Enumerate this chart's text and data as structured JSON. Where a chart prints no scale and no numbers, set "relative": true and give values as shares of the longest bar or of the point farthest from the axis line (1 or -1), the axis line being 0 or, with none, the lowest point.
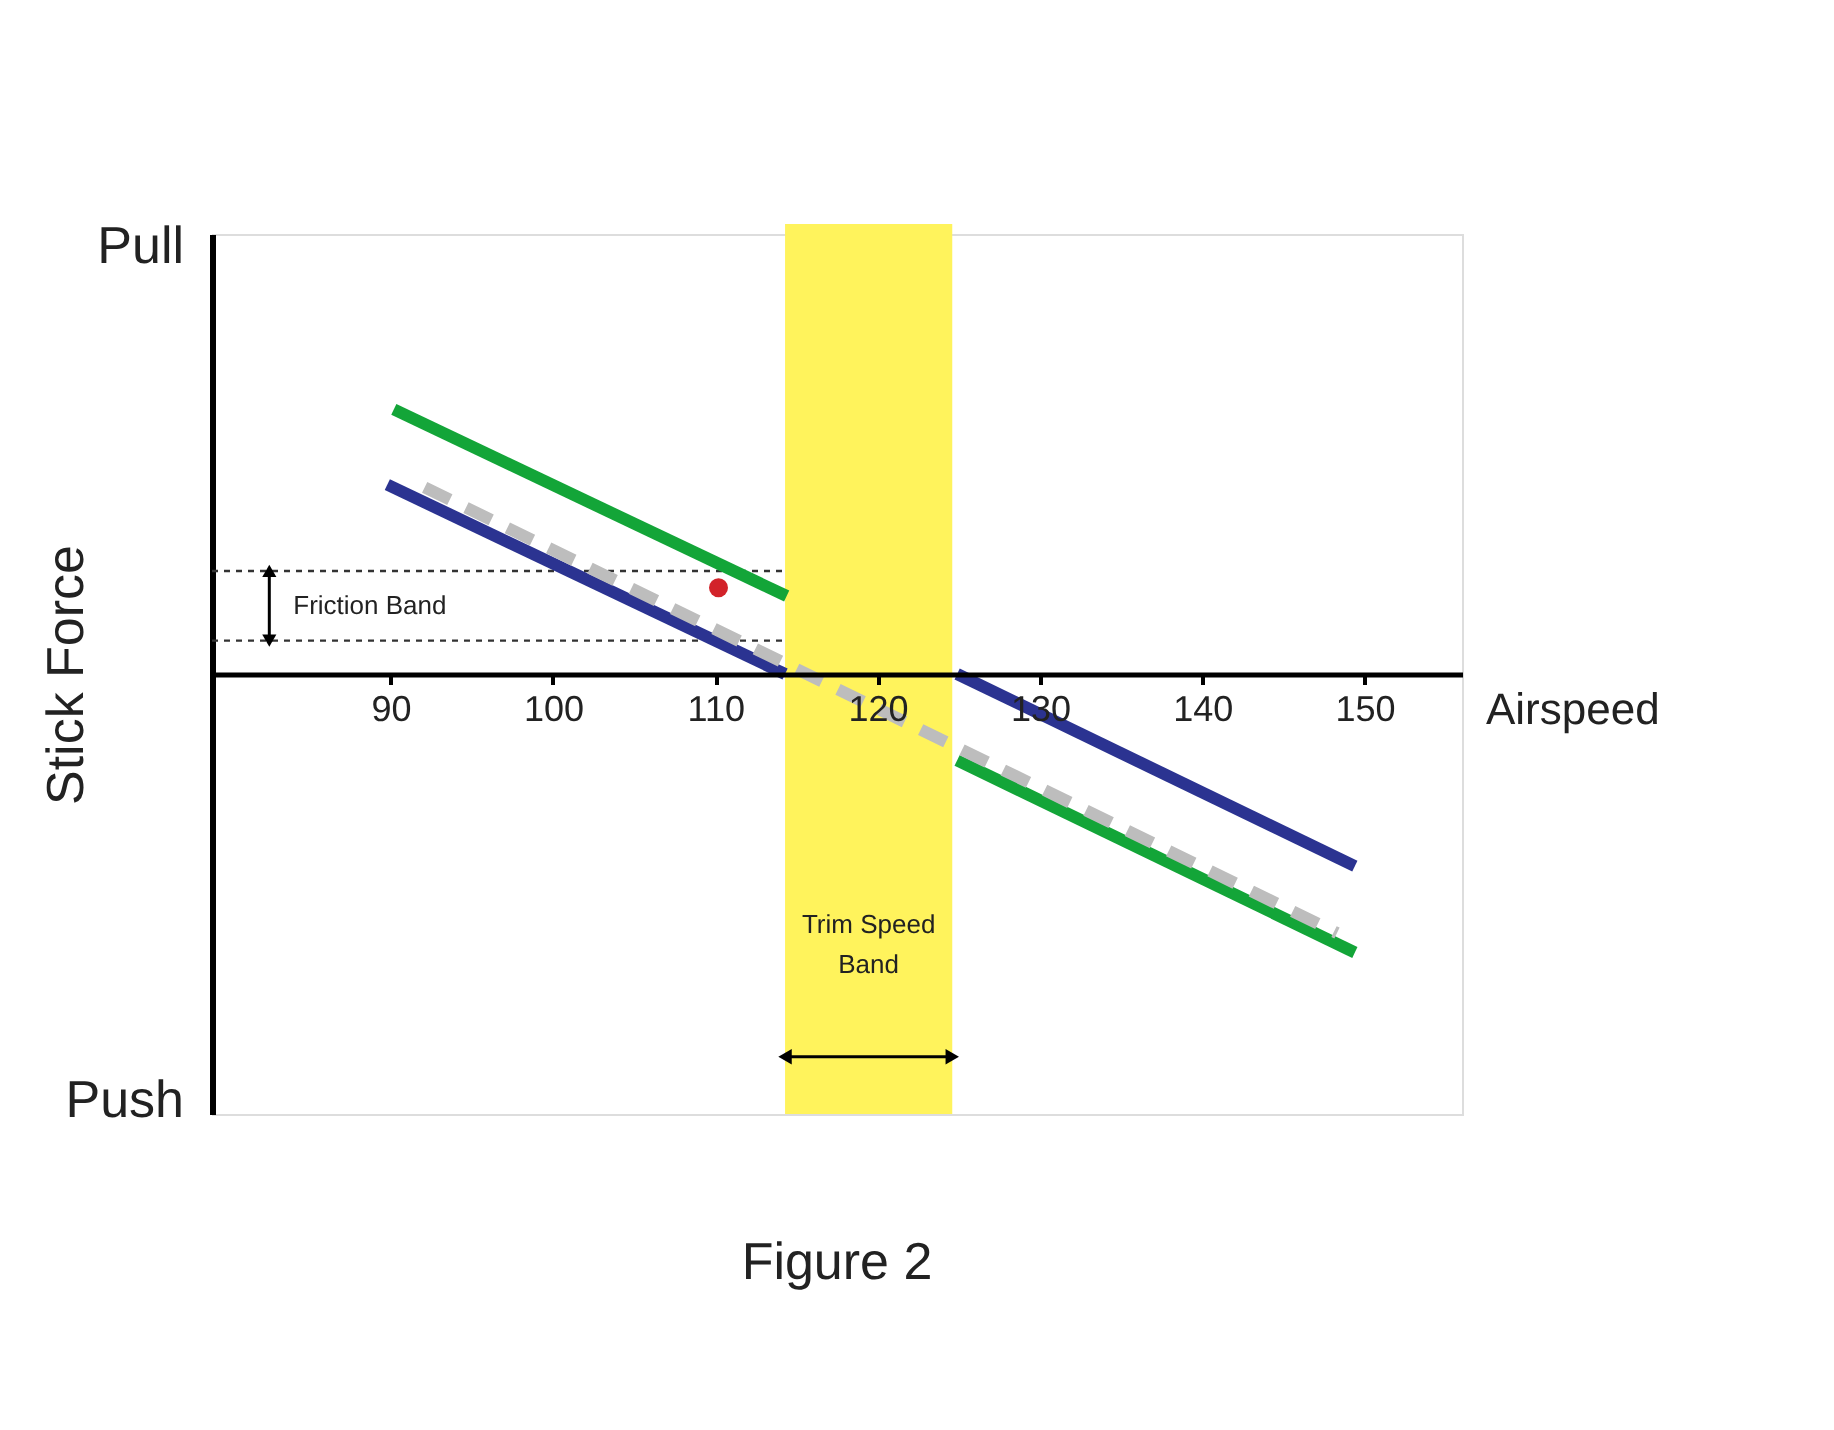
{
  "chart_data": {
    "type": "line",
    "title": "Figure 2",
    "xlabel": "Airspeed",
    "ylabel": "Stick Force",
    "relative": true,
    "annotations": [
      "Pull",
      "Push"
    ],
    "xlim": [
      79,
      156
    ],
    "xticks": [
      90,
      100,
      110,
      120,
      130,
      140,
      150
    ],
    "series": [
      {
        "color": "#13a538",
        "x": [
          90.2,
          114.4
        ],
        "values": [
          0.95,
          0.28
        ]
      },
      {
        "color": "#13a538",
        "x": [
          124.9,
          149.4
        ],
        "values": [
          -0.31,
          -1.0
        ]
      },
      {
        "color": "#2b3391",
        "x": [
          89.8,
          114.3
        ],
        "values": [
          0.68,
          0.0
        ]
      },
      {
        "color": "#2b3391",
        "x": [
          124.9,
          149.4
        ],
        "values": [
          0.0,
          -0.69
        ]
      },
      {
        "color": "#bdbdbd",
        "line_style": "dashed",
        "x": [
          92.1,
          148.3
        ],
        "values": [
          0.67,
          -0.93
        ]
      },
      {
        "type": "scatter",
        "marker": "circle",
        "color": "#d2232a",
        "x": [
          110.2
        ],
        "values": [
          0.31
        ]
      }
    ],
    "bands": [
      {
        "axis": "x",
        "from": 114.3,
        "to": 124.6,
        "label": "Trim Speed Band",
        "color": "#fff35c"
      }
    ],
    "ref_lines": [
      {
        "axis": "y",
        "value": 0.12,
        "line_style": "dotted",
        "color": "#333333"
      },
      {
        "axis": "y",
        "value": 0.37,
        "line_style": "dotted",
        "color": "#333333",
        "label": "Friction Band"
      }
    ]
  }
}
